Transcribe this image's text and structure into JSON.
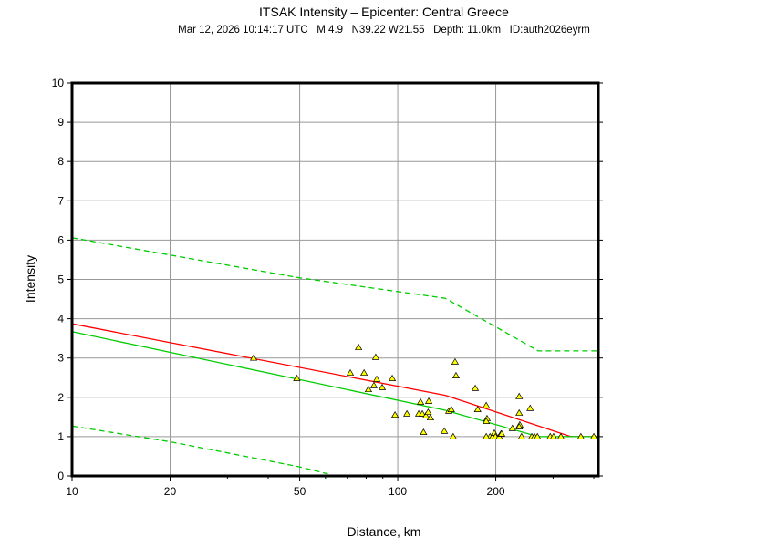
{
  "chart_data": {
    "type": "scatter",
    "title": "ITSAK Intensity –  Epicenter: Central Greece",
    "subtitle": "Mar 12, 2026 10:14:17 UTC   M 4.9   N39.22 W21.55   Depth: 11.0km   ID:auth2026eyrm",
    "xlabel": "Distance, km",
    "ylabel": "Intensity",
    "xscale": "log",
    "xlim": [
      10,
      413
    ],
    "ylim": [
      0,
      10
    ],
    "xticks": [
      10,
      20,
      50,
      100,
      200
    ],
    "xminor": [
      30,
      40,
      60,
      70,
      80,
      90,
      300,
      400
    ],
    "yticks": [
      0,
      1,
      2,
      3,
      4,
      5,
      6,
      7,
      8,
      9,
      10
    ],
    "xgrid": [
      20,
      50,
      100,
      200
    ],
    "grid": true,
    "colors": {
      "red_line": "#ff0000",
      "green_line": "#00cc00",
      "points": "#ffff00"
    },
    "lines": [
      {
        "color": "#ff0000",
        "style": "solid",
        "x": [
          10,
          140,
          340,
          413
        ],
        "y": [
          3.87,
          2.05,
          1.0,
          1.0
        ]
      },
      {
        "color": "#00cc00",
        "style": "solid",
        "x": [
          10,
          140,
          270,
          413
        ],
        "y": [
          3.67,
          1.67,
          1.0,
          1.0
        ]
      },
      {
        "color": "#00cc00",
        "style": "dashed",
        "x": [
          10,
          50,
          60,
          140,
          270,
          413
        ],
        "y": [
          6.06,
          5.04,
          4.95,
          4.52,
          3.18,
          3.18
        ]
      },
      {
        "color": "#00cc00",
        "style": "dashed",
        "x": [
          10,
          20,
          50,
          61
        ],
        "y": [
          1.27,
          0.87,
          0.23,
          0.05
        ]
      }
    ],
    "points": {
      "x": [
        36.1,
        49,
        71.5,
        75.8,
        78.8,
        81.3,
        84.5,
        85.6,
        86.2,
        89.6,
        96.2,
        98.1,
        106.7,
        116,
        117.5,
        119,
        120,
        122,
        124,
        124.5,
        126,
        139,
        143.5,
        146,
        148,
        150,
        151,
        173,
        176,
        187,
        188,
        187,
        192,
        195.5,
        198,
        199.5,
        205,
        207.5,
        208.5,
        187,
        225,
        236,
        236,
        237,
        236,
        240,
        255,
        258,
        263,
        268.5,
        294,
        301,
        317,
        365,
        400
      ],
      "y": [
        3.0,
        2.48,
        2.62,
        3.27,
        2.62,
        2.2,
        2.3,
        3.02,
        2.46,
        2.25,
        2.48,
        1.55,
        1.58,
        1.58,
        1.88,
        1.58,
        1.11,
        1.53,
        1.62,
        1.9,
        1.48,
        1.14,
        1.65,
        1.69,
        1.0,
        2.9,
        2.55,
        2.23,
        1.69,
        1.79,
        1.46,
        1.39,
        1.0,
        1.0,
        1.09,
        1.0,
        1.0,
        1.07,
        1.07,
        1.0,
        1.21,
        2.02,
        1.6,
        1.3,
        1.25,
        1.0,
        1.72,
        1.0,
        1.0,
        1.0,
        1.0,
        1.0,
        1.0,
        1.0,
        1.0
      ]
    }
  }
}
